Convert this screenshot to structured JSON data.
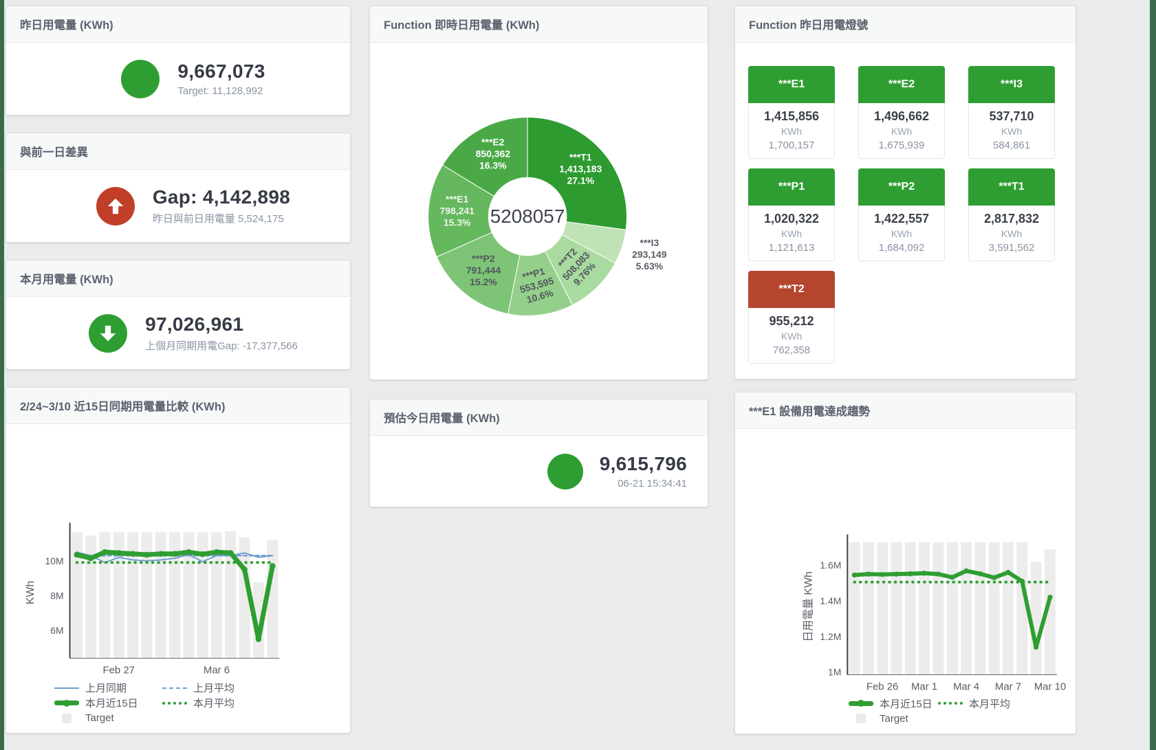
{
  "page": {
    "background": "#eaebec",
    "edge_strip_color": "#3a6a4a"
  },
  "colors": {
    "green": "#2f9e32",
    "red_tile": "#b5452e",
    "red_circle": "#c13e29",
    "blue": "#6f9fd0",
    "target_grey": "#ececec"
  },
  "cards": {
    "yesterday": {
      "title": "昨日用電量 (KWh)",
      "value": "9,667,073",
      "subtext": "Target: 11,128,992"
    },
    "day_gap": {
      "title": "與前一日差異",
      "value": "Gap: 4,142,898",
      "subtext": "昨日與前日用電量 5,524,175"
    },
    "month": {
      "title": "本月用電量 (KWh)",
      "value": "97,026,961",
      "subtext": "上個月同期用電Gap: -17,377,566"
    },
    "estimate": {
      "title": "預估今日用電量 (KWh)",
      "value": "9,615,796",
      "subtext": "06-21 15:34:41"
    },
    "donut": {
      "title": "Function 即時日用電量 (KWh)"
    },
    "lamp": {
      "title": "Function 昨日用電燈號",
      "tiles": [
        {
          "name": "***E1",
          "value": "1,415,856",
          "unit": "KWh",
          "target": "1,700,157",
          "status": "green"
        },
        {
          "name": "***E2",
          "value": "1,496,662",
          "unit": "KWh",
          "target": "1,675,939",
          "status": "green"
        },
        {
          "name": "***I3",
          "value": "537,710",
          "unit": "KWh",
          "target": "584,861",
          "status": "green"
        },
        {
          "name": "***P1",
          "value": "1,020,322",
          "unit": "KWh",
          "target": "1,121,613",
          "status": "green"
        },
        {
          "name": "***P2",
          "value": "1,422,557",
          "unit": "KWh",
          "target": "1,684,092",
          "status": "green"
        },
        {
          "name": "***T1",
          "value": "2,817,832",
          "unit": "KWh",
          "target": "3,591,562",
          "status": "green"
        },
        {
          "name": "***T2",
          "value": "955,212",
          "unit": "KWh",
          "target": "762,358",
          "status": "red"
        }
      ]
    },
    "compare_chart": {
      "title": "2/24~3/10 近15日同期用電量比較 (KWh)"
    },
    "trend_chart": {
      "title": "***E1 設備用電達成趨勢"
    }
  },
  "chart_data": [
    {
      "id": "realtime_donut",
      "type": "pie",
      "title": "Function 即時日用電量 (KWh)",
      "center_total": "5208057",
      "slices": [
        {
          "name": "***T1",
          "value": 1413183,
          "value_label": "1,413,183",
          "pct_label": "27.1%",
          "color": "#2e9b31",
          "label_color": "#ffffff",
          "label_rotate": 0,
          "label_pos": "inside"
        },
        {
          "name": "***I3",
          "value": 293149,
          "value_label": "293,149",
          "pct_label": "5.63%",
          "color": "#bfe3b6",
          "label_color": "#5a6069",
          "label_rotate": 0,
          "label_pos": "outside"
        },
        {
          "name": "***T2",
          "value": 508083,
          "value_label": "508,083",
          "pct_label": "9.76%",
          "color": "#a9da9f",
          "label_color": "#51565e",
          "label_rotate": -47,
          "label_pos": "inside"
        },
        {
          "name": "***P1",
          "value": 553595,
          "value_label": "553,595",
          "pct_label": "10.6%",
          "color": "#94cf8b",
          "label_color": "#51565e",
          "label_rotate": -16,
          "label_pos": "inside"
        },
        {
          "name": "***P2",
          "value": 791444,
          "value_label": "791,444",
          "pct_label": "15.2%",
          "color": "#7ec476",
          "label_color": "#51565e",
          "label_rotate": 0,
          "label_pos": "inside"
        },
        {
          "name": "***E1",
          "value": 798241,
          "value_label": "798,241",
          "pct_label": "15.3%",
          "color": "#65b85d",
          "label_color": "#eef5ec",
          "label_rotate": 0,
          "label_pos": "inside"
        },
        {
          "name": "***E2",
          "value": 850362,
          "value_label": "850,362",
          "pct_label": "16.3%",
          "color": "#4aa946",
          "label_color": "#ffffff",
          "label_rotate": 0,
          "label_pos": "inside"
        }
      ]
    },
    {
      "id": "compare_15d",
      "type": "line+bar",
      "title": "2/24~3/10 近15日同期用電量比較 (KWh)",
      "ylabel": "KWh",
      "ylim": [
        4400000,
        11950000
      ],
      "yticks": [
        {
          "value": 6000000,
          "label": "6M"
        },
        {
          "value": 8000000,
          "label": "8M"
        },
        {
          "value": 10000000,
          "label": "10M"
        }
      ],
      "xticks": [
        {
          "index": 3,
          "label": "Feb 27"
        },
        {
          "index": 10,
          "label": "Mar 6"
        }
      ],
      "target_bars": {
        "name": "Target",
        "color": "#ececec",
        "values": [
          11640000,
          11450000,
          11640000,
          11640000,
          11640000,
          11640000,
          11640000,
          11640000,
          11640000,
          11640000,
          11640000,
          11700000,
          11350000,
          8760000,
          11200000
        ]
      },
      "series": [
        {
          "name": "上月同期",
          "color": "#6f9fd0",
          "style": "solid",
          "width": 2,
          "values": [
            10500000,
            10300000,
            9900000,
            10200000,
            10050000,
            10000000,
            10050000,
            10150000,
            10350000,
            9950000,
            10300000,
            10300000,
            10450000,
            10200000,
            10300000
          ]
        },
        {
          "name": "上月平均",
          "color": "#6f9fd0",
          "style": "dashed",
          "width": 2.5,
          "const": 10300000
        },
        {
          "name": "本月平均",
          "color": "#2f9e32",
          "style": "dotted",
          "width": 4,
          "const": 9900000
        },
        {
          "name": "本月近15日",
          "color": "#2f9e32",
          "style": "solid",
          "width": 7,
          "values": [
            10350000,
            10150000,
            10500000,
            10450000,
            10400000,
            10350000,
            10400000,
            10400000,
            10500000,
            10380000,
            10500000,
            10450000,
            9500000,
            5500000,
            9700000
          ]
        }
      ],
      "legend_rows": [
        [
          {
            "swatch": "line-blue",
            "label": "上月同期"
          },
          {
            "swatch": "dash-blue",
            "label": "上月平均"
          }
        ],
        [
          {
            "swatch": "line-green-thick",
            "label": "本月近15日"
          },
          {
            "swatch": "dot-green",
            "label": "本月平均"
          }
        ],
        [
          {
            "swatch": "square-grey",
            "label": "Target"
          }
        ]
      ]
    },
    {
      "id": "e1_trend",
      "type": "line+bar",
      "title": "***E1 設備用電達成趨勢",
      "ylabel": "日用電量 KWh",
      "ylim": [
        985000,
        1750000
      ],
      "yticks": [
        {
          "value": 1000000,
          "label": "1M"
        },
        {
          "value": 1200000,
          "label": "1.2M"
        },
        {
          "value": 1400000,
          "label": "1.4M"
        },
        {
          "value": 1600000,
          "label": "1.6M"
        }
      ],
      "xticks": [
        {
          "index": 2,
          "label": "Feb 26"
        },
        {
          "index": 5,
          "label": "Mar 1"
        },
        {
          "index": 8,
          "label": "Mar 4"
        },
        {
          "index": 11,
          "label": "Mar 7"
        },
        {
          "index": 14,
          "label": "Mar 10"
        }
      ],
      "target_bars": {
        "name": "Target",
        "color": "#ececec",
        "values": [
          1730000,
          1730000,
          1730000,
          1730000,
          1730000,
          1730000,
          1730000,
          1730000,
          1730000,
          1730000,
          1730000,
          1730000,
          1730000,
          1620000,
          1690000
        ]
      },
      "series": [
        {
          "name": "本月平均",
          "color": "#2f9e32",
          "style": "dotted",
          "width": 4,
          "const": 1505000
        },
        {
          "name": "本月近15日",
          "color": "#2f9e32",
          "style": "solid",
          "width": 6,
          "values": [
            1545000,
            1550000,
            1548000,
            1550000,
            1552000,
            1555000,
            1550000,
            1532000,
            1568000,
            1552000,
            1530000,
            1560000,
            1510000,
            1140000,
            1420000
          ]
        }
      ],
      "legend_rows": [
        [
          {
            "swatch": "line-green-thick",
            "label": "本月近15日"
          },
          {
            "swatch": "dot-green",
            "label": "本月平均"
          }
        ],
        [
          {
            "swatch": "square-grey",
            "label": "Target"
          }
        ]
      ]
    }
  ]
}
